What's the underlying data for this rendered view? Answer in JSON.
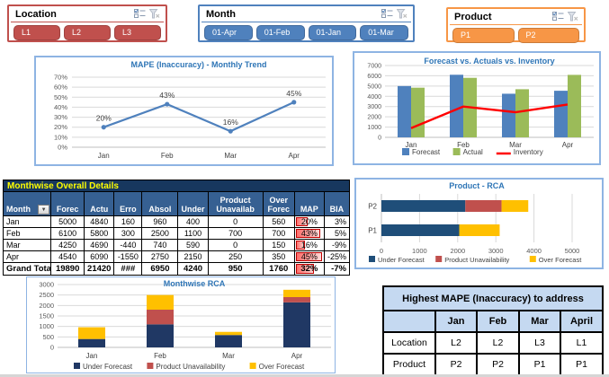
{
  "icons": {
    "dropdown": "▼",
    "multi_select": "multi-select-list",
    "clear_filter": "clear-filter-funnel"
  },
  "slicers": {
    "location": {
      "title": "Location",
      "color": "#C0504D",
      "items": [
        "L1",
        "L2",
        "L3"
      ]
    },
    "month": {
      "title": "Month",
      "color": "#4F81BD",
      "items": [
        "01-Apr",
        "01-Feb",
        "01-Jan",
        "01-Mar"
      ]
    },
    "product": {
      "title": "Product",
      "color": "#F79646",
      "items": [
        "P1",
        "P2"
      ]
    }
  },
  "chart_data": [
    {
      "id": "mape-trend",
      "type": "line",
      "title": "MAPE (Inaccuracy) - Monthly Trend",
      "categories": [
        "Jan",
        "Feb",
        "Mar",
        "Apr"
      ],
      "values": [
        20,
        43,
        16,
        45
      ],
      "point_labels": [
        "20%",
        "43%",
        "16%",
        "45%"
      ],
      "ylim": [
        0,
        70
      ],
      "ytick_step": 10,
      "ytick_suffix": "%",
      "line_color": "#4F81BD",
      "grid": true,
      "legend": false
    },
    {
      "id": "forecast-vs-actual",
      "type": "bar",
      "title": "Forecast vs. Actuals vs. Inventory",
      "categories": [
        "Jan",
        "Feb",
        "Mar",
        "Apr"
      ],
      "series": [
        {
          "name": "Forecast",
          "type": "bar",
          "color": "#4F81BD",
          "values": [
            5000,
            6100,
            4250,
            4540
          ]
        },
        {
          "name": "Actual",
          "type": "bar",
          "color": "#9BBB59",
          "values": [
            4840,
            5800,
            4690,
            6090
          ]
        },
        {
          "name": "Inventory",
          "type": "line",
          "color": "#FF0000",
          "values": [
            900,
            3000,
            2450,
            3200
          ]
        }
      ],
      "ylim": [
        0,
        7000
      ],
      "ytick_step": 1000,
      "grid": true,
      "legend_position": "bottom"
    },
    {
      "id": "product-rca",
      "type": "bar",
      "orientation": "horizontal",
      "stacked": true,
      "title": "Product - RCA",
      "categories": [
        "P2",
        "P1"
      ],
      "series": [
        {
          "name": "Under Forecast",
          "color": "#1F4E79",
          "values": [
            2200,
            2040
          ]
        },
        {
          "name": "Product Unavailability",
          "color": "#C0504D",
          "values": [
            950,
            0
          ]
        },
        {
          "name": "Over Forecast",
          "color": "#FFC000",
          "values": [
            700,
            1060
          ]
        }
      ],
      "xlim": [
        0,
        5000
      ],
      "xtick_step": 1000,
      "grid": true,
      "legend_position": "bottom"
    },
    {
      "id": "monthwise-rca",
      "type": "bar",
      "stacked": true,
      "title": "Monthwise RCA",
      "categories": [
        "Jan",
        "Feb",
        "Mar",
        "Apr"
      ],
      "series": [
        {
          "name": "Under Forecast",
          "color": "#203864",
          "values": [
            400,
            1100,
            590,
            2150
          ]
        },
        {
          "name": "Product Unavailability",
          "color": "#C0504D",
          "values": [
            0,
            700,
            0,
            250
          ]
        },
        {
          "name": "Over Forecast",
          "color": "#FFC000",
          "values": [
            560,
            700,
            150,
            350
          ]
        }
      ],
      "ylim": [
        0,
        3000
      ],
      "ytick_step": 500,
      "grid": true,
      "legend_position": "bottom"
    }
  ],
  "details_table": {
    "title": "Monthwise Overall Details",
    "columns": [
      "Month",
      "Forec",
      "Actu",
      "Erro",
      "Absol",
      "Under",
      "Product Unavailab",
      "Over Forec",
      "MAP",
      "BIA"
    ],
    "rows": [
      [
        "Jan",
        "5000",
        "4840",
        "160",
        "960",
        "400",
        "0",
        "560",
        "20%",
        "3%"
      ],
      [
        "Feb",
        "6100",
        "5800",
        "300",
        "2500",
        "1100",
        "700",
        "700",
        "43%",
        "5%"
      ],
      [
        "Mar",
        "4250",
        "4690",
        "-440",
        "740",
        "590",
        "0",
        "150",
        "16%",
        "-9%"
      ],
      [
        "Apr",
        "4540",
        "6090",
        "-1550",
        "2750",
        "2150",
        "250",
        "350",
        "45%",
        "-25%"
      ]
    ],
    "total": [
      "Grand Total",
      "19890",
      "21420",
      "###",
      "6950",
      "4240",
      "950",
      "1760",
      "32%",
      "-7%"
    ]
  },
  "highest_table": {
    "title": "Highest MAPE (Inaccuracy) to address",
    "columns": [
      "",
      "Jan",
      "Feb",
      "Mar",
      "April"
    ],
    "rows": [
      [
        "Location",
        "L2",
        "L2",
        "L3",
        "L1"
      ],
      [
        "Product",
        "P2",
        "P2",
        "P1",
        "P1"
      ]
    ]
  },
  "colors": {
    "table_title_bg": "#17375E",
    "table_title_text": "#FFFF00",
    "table_header_bg": "#366092",
    "chart_title": "#2E75B6",
    "chart_border": "#8EB4E3",
    "highest_header_bg": "#C5D9F1",
    "mape_bar": "#FF6D6A"
  }
}
